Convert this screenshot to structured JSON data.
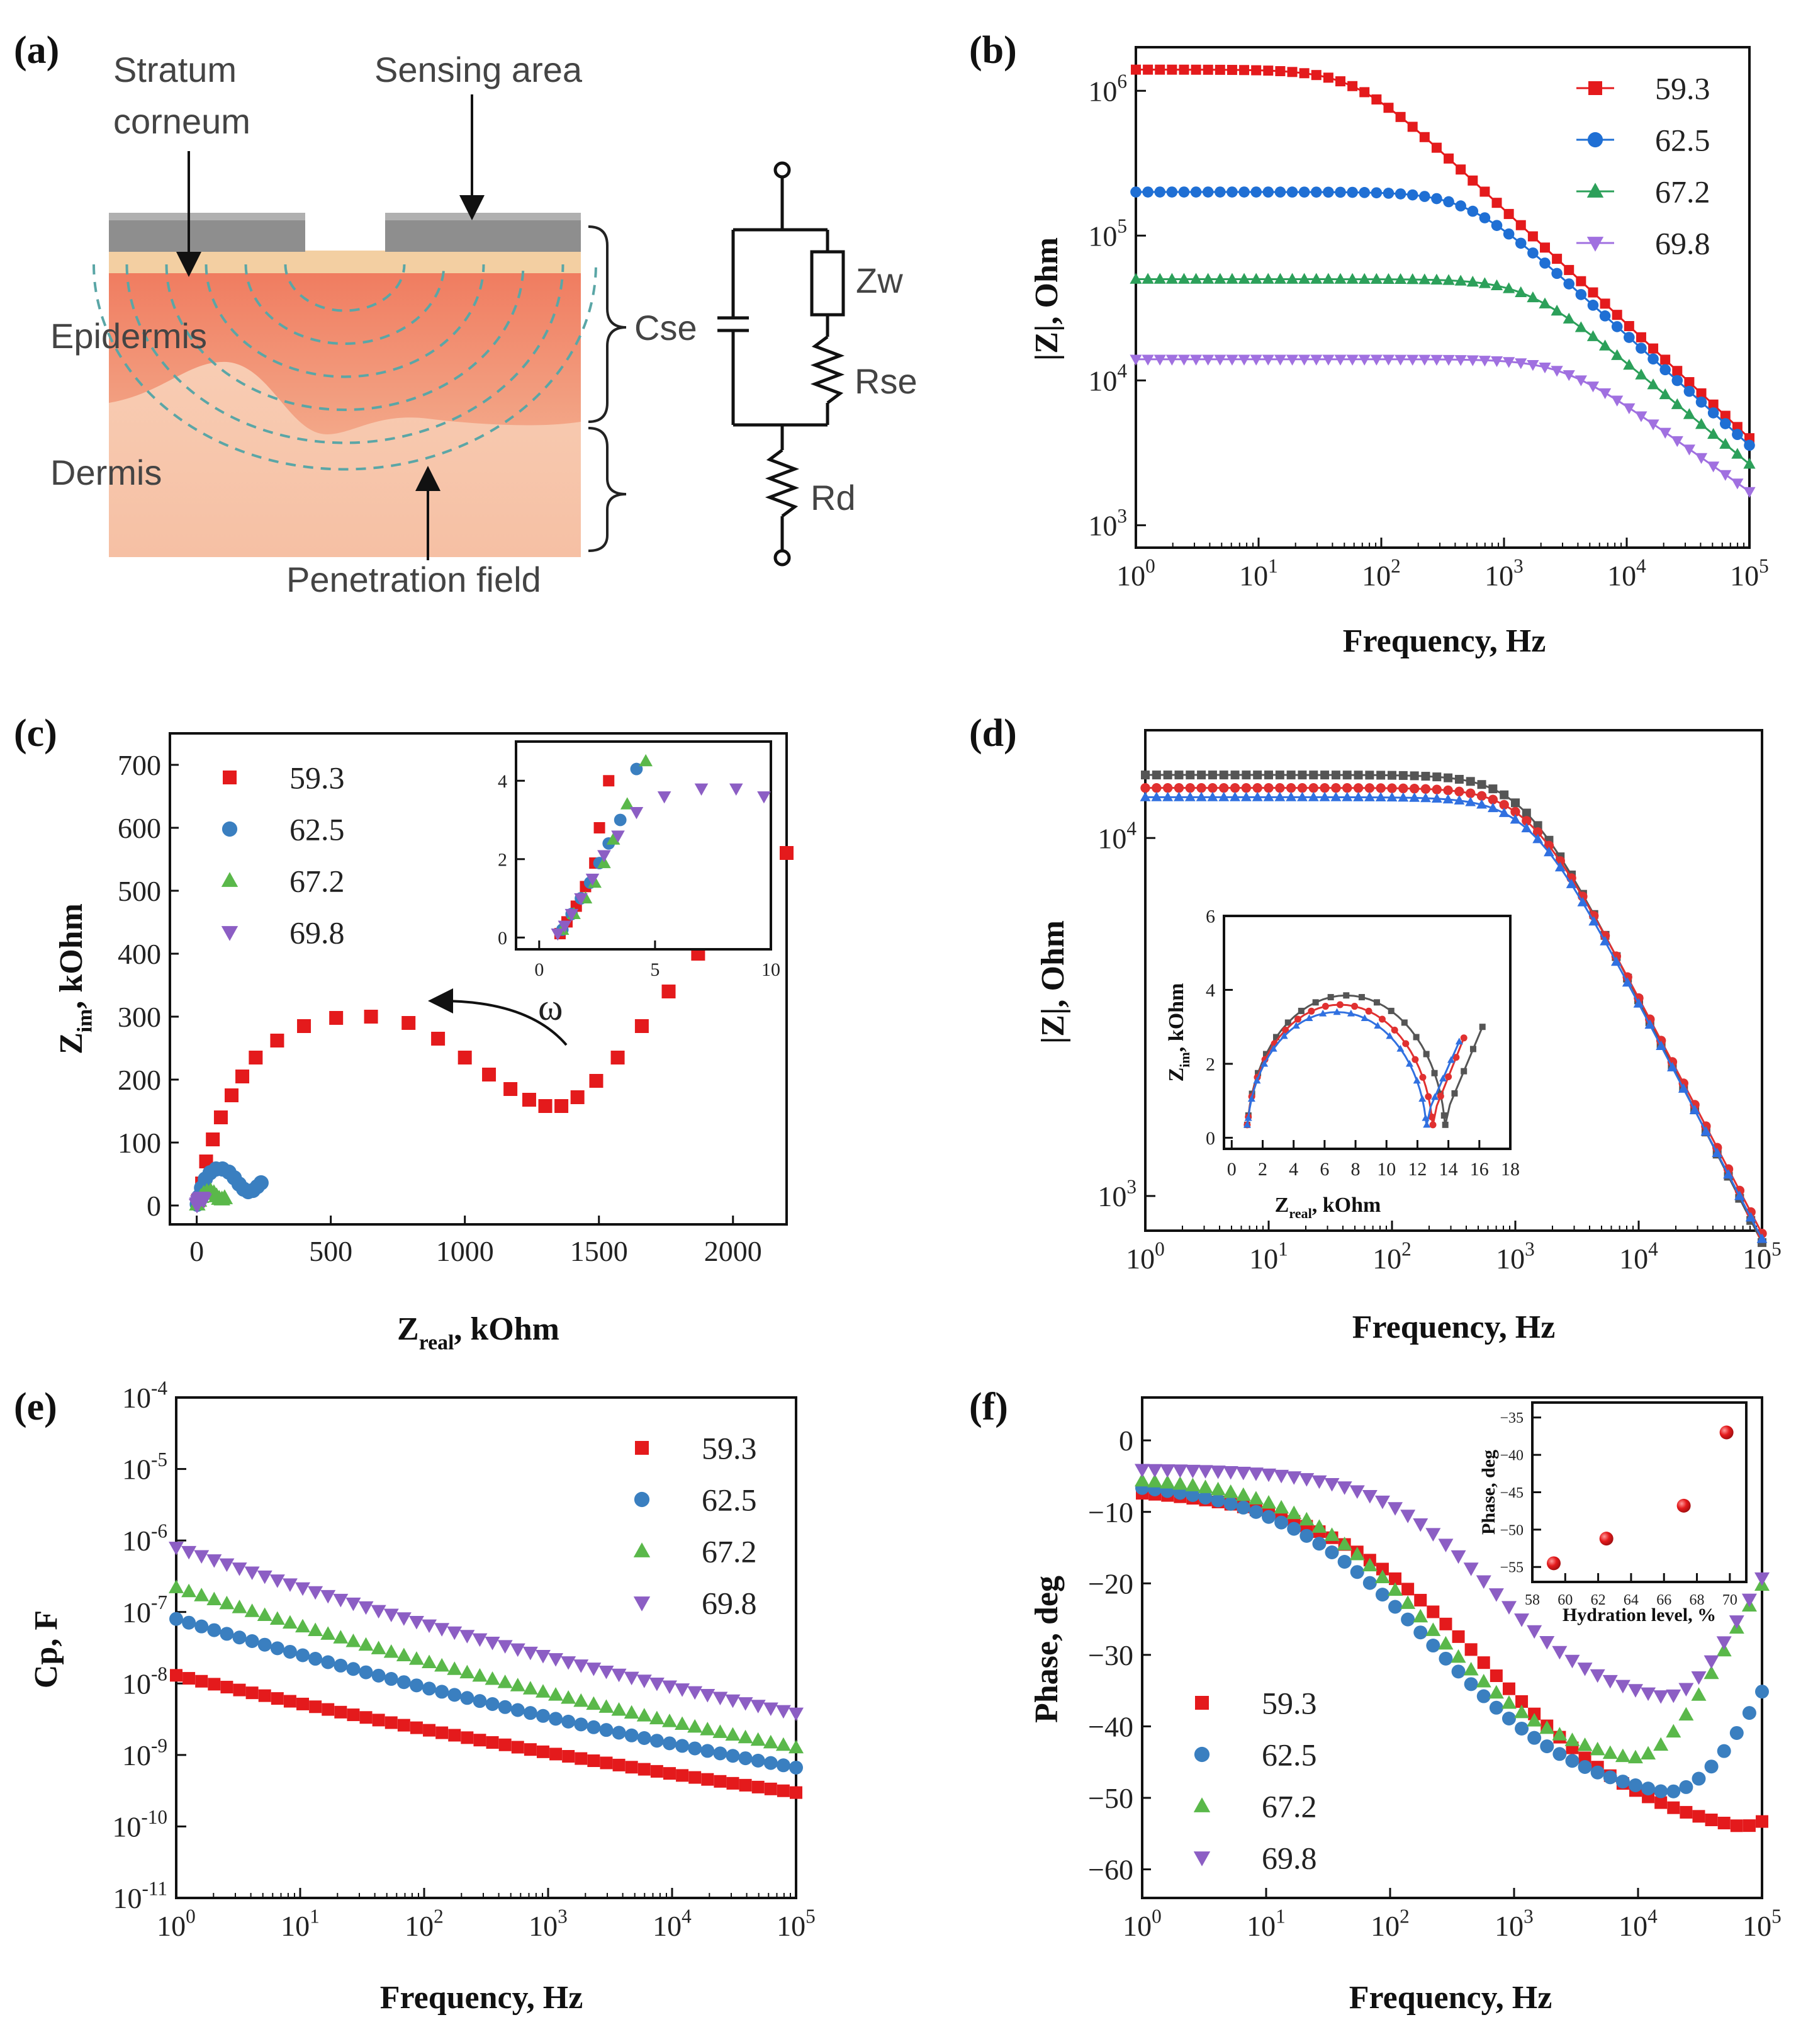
{
  "panel_letters": {
    "a": "(a)",
    "b": "(b)",
    "c": "(c)",
    "d": "(d)",
    "e": "(e)",
    "f": "(f)"
  },
  "colors": {
    "s1": "#e41a1c",
    "s2": "#1f77d4",
    "s3": "#2ca02c",
    "s4": "#9467bd",
    "s2_blue": "#3a7fc0",
    "s3_green": "#5ab84a",
    "s4_purple": "#8c5ec4",
    "d_black": "#555555",
    "d_red": "#e03030",
    "d_blue": "#3070e0"
  },
  "diagram": {
    "stratum_corneum": "Stratum\ncorneum",
    "sensing_area": "Sensing area",
    "epidermis": "Epidermis",
    "dermis": "Dermis",
    "penetration_field": "Penetration field",
    "cse": "Cse",
    "zw": "Zw",
    "rse": "Rse",
    "rd": "Rd"
  },
  "chart_data": [
    {
      "panel": "b",
      "type": "scatter",
      "xlabel": "Frequency, Hz",
      "ylabel": "|Z|, Ohm",
      "xscale": "log",
      "yscale": "log",
      "xlim": [
        1,
        100000
      ],
      "ylim": [
        700,
        2000000
      ],
      "legend": "top-right",
      "grid": false,
      "series": [
        {
          "name": "59.3",
          "marker": "square-line",
          "color": "#e41a1c",
          "plateau": 1400000,
          "fc": 60,
          "slope": 0.79
        },
        {
          "name": "62.5",
          "marker": "circle-line",
          "color": "#1f6fd4",
          "plateau": 200000,
          "fc": 500,
          "slope": 0.76
        },
        {
          "name": "67.2",
          "marker": "triangle-up-line",
          "color": "#2ca05a",
          "plateau": 50000,
          "fc": 1500,
          "slope": 0.7
        },
        {
          "name": "69.8",
          "marker": "triangle-down-line",
          "color": "#a070e0",
          "plateau": 14000,
          "fc": 3000,
          "slope": 0.6
        }
      ]
    },
    {
      "panel": "c",
      "type": "scatter",
      "xlabel": "Zreal, kOhm",
      "ylabel": "Zim, kOhm",
      "xlim": [
        -100,
        2200
      ],
      "ylim": [
        -30,
        750
      ],
      "xticks": [
        0,
        500,
        1000,
        1500,
        2000
      ],
      "yticks": [
        0,
        100,
        200,
        300,
        400,
        500,
        600,
        700
      ],
      "legend": "top-left",
      "annotation": "ω",
      "series": [
        {
          "name": "59.3",
          "marker": "square",
          "color": "#e41a1c",
          "points": [
            [
              5,
              8
            ],
            [
              20,
              35
            ],
            [
              35,
              70
            ],
            [
              60,
              105
            ],
            [
              90,
              140
            ],
            [
              130,
              175
            ],
            [
              170,
              205
            ],
            [
              220,
              235
            ],
            [
              300,
              262
            ],
            [
              400,
              285
            ],
            [
              520,
              298
            ],
            [
              650,
              300
            ],
            [
              790,
              290
            ],
            [
              900,
              265
            ],
            [
              1000,
              235
            ],
            [
              1090,
              208
            ],
            [
              1170,
              185
            ],
            [
              1240,
              168
            ],
            [
              1300,
              158
            ],
            [
              1360,
              158
            ],
            [
              1420,
              172
            ],
            [
              1490,
              198
            ],
            [
              1570,
              235
            ],
            [
              1660,
              285
            ],
            [
              1760,
              340
            ],
            [
              1870,
              400
            ],
            [
              1990,
              460
            ],
            [
              2110,
              520
            ],
            [
              2200,
              560
            ]
          ]
        },
        {
          "name": "62.5",
          "marker": "circle",
          "color": "#3a7fc0",
          "points": [
            [
              2,
              2
            ],
            [
              8,
              14
            ],
            [
              18,
              28
            ],
            [
              32,
              42
            ],
            [
              50,
              52
            ],
            [
              72,
              58
            ],
            [
              96,
              58
            ],
            [
              120,
              53
            ],
            [
              140,
              44
            ],
            [
              158,
              34
            ],
            [
              175,
              26
            ],
            [
              192,
              22
            ],
            [
              210,
              24
            ],
            [
              226,
              30
            ],
            [
              240,
              36
            ]
          ]
        },
        {
          "name": "67.2",
          "marker": "triangle-up",
          "color": "#5ab84a",
          "points": [
            [
              2,
              2
            ],
            [
              8,
              8
            ],
            [
              16,
              14
            ],
            [
              26,
              19
            ],
            [
              38,
              22
            ],
            [
              52,
              23
            ],
            [
              64,
              20
            ],
            [
              74,
              15
            ],
            [
              84,
              11
            ],
            [
              94,
              10
            ],
            [
              104,
              12
            ]
          ]
        },
        {
          "name": "69.8",
          "marker": "triangle-down",
          "color": "#8c5ec4",
          "points": [
            [
              1,
              1
            ],
            [
              3,
              3
            ],
            [
              6,
              6
            ],
            [
              10,
              9
            ],
            [
              14,
              11
            ],
            [
              18,
              12
            ],
            [
              22,
              11
            ],
            [
              26,
              9
            ]
          ]
        }
      ],
      "inset": {
        "xlim": [
          -1,
          10
        ],
        "ylim": [
          -0.3,
          5
        ],
        "xticks": [
          0,
          5,
          10
        ],
        "yticks": [
          0,
          2,
          4
        ],
        "series": [
          {
            "name": "59.3",
            "marker": "square",
            "color": "#e41a1c",
            "points": [
              [
                0.9,
                0.1
              ],
              [
                1.2,
                0.4
              ],
              [
                1.6,
                0.8
              ],
              [
                2.0,
                1.3
              ],
              [
                2.4,
                1.9
              ],
              [
                2.6,
                2.8
              ],
              [
                3.0,
                4.0
              ]
            ]
          },
          {
            "name": "62.5",
            "marker": "circle",
            "color": "#3a7fc0",
            "points": [
              [
                1.0,
                0.2
              ],
              [
                1.4,
                0.6
              ],
              [
                1.8,
                1.0
              ],
              [
                2.2,
                1.4
              ],
              [
                2.6,
                1.9
              ],
              [
                3.0,
                2.4
              ],
              [
                3.5,
                3.0
              ],
              [
                4.2,
                4.3
              ]
            ]
          },
          {
            "name": "67.2",
            "marker": "triangle-up",
            "color": "#5ab84a",
            "points": [
              [
                1.0,
                0.2
              ],
              [
                1.5,
                0.6
              ],
              [
                2.0,
                1.0
              ],
              [
                2.4,
                1.4
              ],
              [
                2.8,
                1.9
              ],
              [
                3.2,
                2.5
              ],
              [
                3.8,
                3.4
              ],
              [
                4.6,
                4.5
              ]
            ]
          },
          {
            "name": "69.8",
            "marker": "triangle-down",
            "color": "#8c5ec4",
            "points": [
              [
                0.8,
                0.1
              ],
              [
                1.1,
                0.3
              ],
              [
                1.4,
                0.6
              ],
              [
                1.8,
                1.0
              ],
              [
                2.3,
                1.5
              ],
              [
                2.8,
                2.1
              ],
              [
                3.4,
                2.6
              ],
              [
                4.2,
                3.2
              ],
              [
                5.4,
                3.6
              ],
              [
                7.0,
                3.8
              ],
              [
                8.5,
                3.8
              ],
              [
                9.7,
                3.6
              ]
            ]
          }
        ]
      }
    },
    {
      "panel": "d",
      "type": "scatter",
      "xlabel": "Frequency, Hz",
      "ylabel": "|Z|, Ohm",
      "xscale": "log",
      "yscale": "log",
      "xlim": [
        1,
        100000
      ],
      "ylim": [
        800,
        20000
      ],
      "series": [
        {
          "color": "#555555",
          "marker": "square-line",
          "plateau": 15000,
          "fc": 1200,
          "slope": 0.68
        },
        {
          "color": "#e03030",
          "marker": "circle-line",
          "plateau": 13800,
          "fc": 1300,
          "slope": 0.66
        },
        {
          "color": "#3070e0",
          "marker": "triangle-up-line",
          "plateau": 13000,
          "fc": 1350,
          "slope": 0.66
        }
      ],
      "inset": {
        "xlabel": "Zreal, kOhm",
        "ylabel": "Zim, kOhm",
        "xlim": [
          -0.5,
          18
        ],
        "ylim": [
          -0.3,
          6
        ],
        "xticks": [
          0,
          2,
          4,
          6,
          8,
          10,
          12,
          14,
          16,
          18
        ],
        "yticks": [
          0,
          2,
          4,
          6
        ],
        "series": [
          {
            "color": "#555555",
            "center": 7.4,
            "radius": 6.4,
            "height": 3.85,
            "tail_x": [
              13.8,
              16.2
            ],
            "tail_top": 3.0
          },
          {
            "color": "#e03030",
            "center": 7.0,
            "radius": 6.0,
            "height": 3.6,
            "tail_x": [
              12.9,
              15.0
            ],
            "tail_top": 2.7
          },
          {
            "color": "#3070e0",
            "center": 6.8,
            "radius": 5.8,
            "height": 3.4,
            "tail_x": [
              12.5,
              14.7
            ],
            "tail_top": 2.6
          }
        ]
      }
    },
    {
      "panel": "e",
      "type": "scatter",
      "xlabel": "Frequency, Hz",
      "ylabel": "Cp, F",
      "xscale": "log",
      "yscale": "log",
      "xlim": [
        1,
        100000
      ],
      "ylim": [
        1e-11,
        0.0001
      ],
      "legend": "top-right",
      "series": [
        {
          "name": "59.3",
          "marker": "square",
          "color": "#e41a1c",
          "c0": 1.3e-08,
          "slope": 0.41
        },
        {
          "name": "62.5",
          "marker": "circle",
          "color": "#3a7fc0",
          "c0": 8e-08,
          "slope": 0.52
        },
        {
          "name": "67.2",
          "marker": "triangle-up",
          "color": "#5ab84a",
          "c0": 2.2e-07,
          "slope": 0.56
        },
        {
          "name": "69.8",
          "marker": "triangle-down",
          "color": "#8c5ec4",
          "c0": 8e-07,
          "slope": 0.58
        }
      ]
    },
    {
      "panel": "f",
      "type": "scatter",
      "xlabel": "Frequency, Hz",
      "ylabel": "Phase, deg",
      "xscale": "log",
      "xlim": [
        1,
        100000
      ],
      "ylim": [
        -64,
        6
      ],
      "yticks": [
        0,
        -10,
        -20,
        -30,
        -40,
        -50,
        -60
      ],
      "legend": "bottom-left",
      "series": [
        {
          "name": "59.3",
          "marker": "square",
          "color": "#e41a1c",
          "min": -56.5,
          "fmin": 60000,
          "start": -6.5,
          "width": 1.25
        },
        {
          "name": "62.5",
          "marker": "circle",
          "color": "#3a7fc0",
          "min": -51.5,
          "fmin": 15000,
          "start": -5.5,
          "width": 1.15
        },
        {
          "name": "67.2",
          "marker": "triangle-up",
          "color": "#5ab84a",
          "min": -46.5,
          "fmin": 8000,
          "start": -5.0,
          "width": 1.0
        },
        {
          "name": "69.8",
          "marker": "triangle-down",
          "color": "#8c5ec4",
          "min": -37.5,
          "fmin": 15000,
          "start": -4.0,
          "width": 0.85
        }
      ],
      "inset": {
        "xlabel": "Hydration level, %",
        "ylabel": "Phase, deg",
        "xlim": [
          58,
          71
        ],
        "ylim": [
          -57,
          -33
        ],
        "xticks": [
          58,
          60,
          62,
          64,
          66,
          68,
          70
        ],
        "yticks": [
          -35,
          -40,
          -45,
          -50,
          -55
        ],
        "points": [
          [
            59.3,
            -54.5
          ],
          [
            62.5,
            -51.2
          ],
          [
            67.2,
            -46.8
          ],
          [
            69.8,
            -37.0
          ]
        ]
      }
    }
  ]
}
